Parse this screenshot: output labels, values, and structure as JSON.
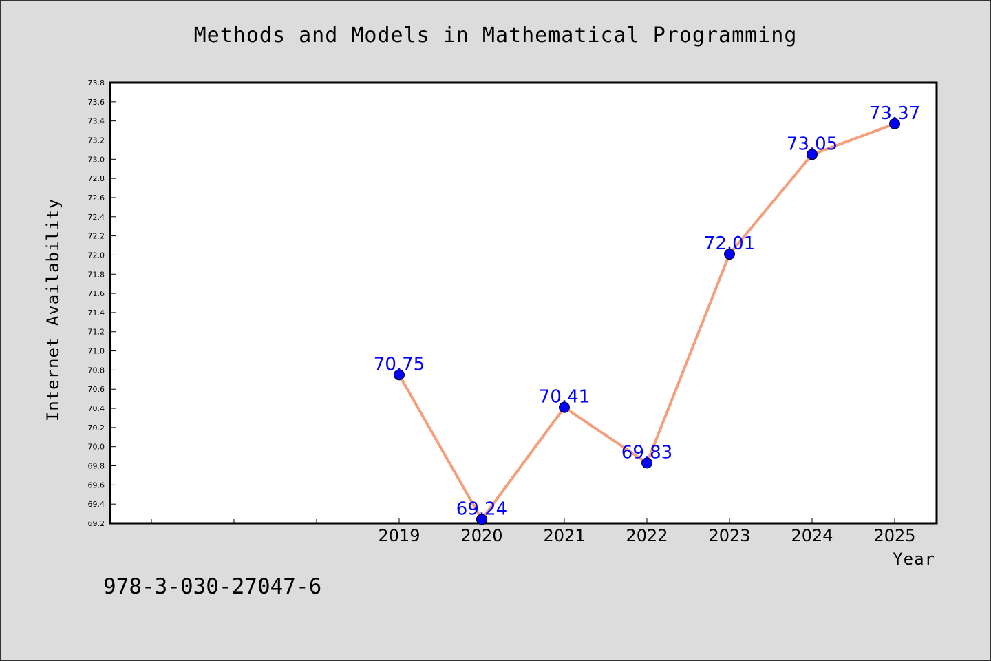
{
  "title": "Methods and Models in Mathematical Programming",
  "footer_text": "978-3-030-27047-6",
  "chart_data": {
    "type": "line",
    "title": "Methods and Models in Mathematical Programming",
    "xlabel": "Year",
    "ylabel": "Internet Availability",
    "x": [
      "2019",
      "2020",
      "2021",
      "2022",
      "2023",
      "2024",
      "2025"
    ],
    "series": [
      {
        "values": [
          70.75,
          69.24,
          70.41,
          69.83,
          72.01,
          73.05,
          73.37
        ],
        "line_color": "#f4a07f",
        "marker_color": "#0000ff"
      }
    ],
    "data_labels": [
      "70.75",
      "69.24",
      "70.41",
      "69.83",
      "72.01",
      "73.05",
      "73.37"
    ],
    "ylim": [
      69.2,
      73.8
    ],
    "yticks": [
      "69.2",
      "69.4",
      "69.6",
      "69.8",
      "70.0",
      "70.2",
      "70.4",
      "70.6",
      "70.8",
      "71.0",
      "71.2",
      "71.4",
      "71.6",
      "71.8",
      "72.0",
      "72.2",
      "72.4",
      "72.6",
      "72.8",
      "73.0",
      "73.2",
      "73.4",
      "73.6",
      "73.8"
    ],
    "grid": false,
    "legend": "none"
  }
}
